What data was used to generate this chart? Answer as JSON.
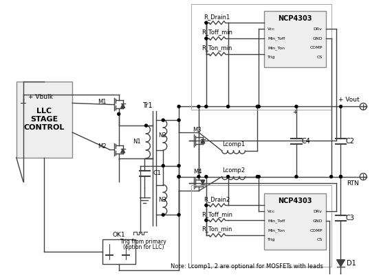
{
  "title": "",
  "bg_color": "#ffffff",
  "line_color": "#404040",
  "box_color": "#a0a0a0",
  "text_color": "#000000",
  "note": "Note: Lcomp1, 2 are optional for MOSFETs with leads",
  "labels": {
    "vbulk": "+ Vbulk",
    "vout": "+ Vout",
    "rtn": "RTN",
    "tr1": "Tr1",
    "n1": "N1",
    "n2": "N2",
    "n3": "N3",
    "m1": "M1",
    "m2": "M2",
    "m3": "M3",
    "m4": "M4",
    "c1": "C1",
    "c2": "C2",
    "c3": "C3",
    "c4": "C4",
    "d1": "D1",
    "ok1": "OK1",
    "lcomp1": "Lcomp1",
    "lcomp2": "Lcomp2",
    "ncp4303_1": "NCP4303",
    "ncp4303_2": "NCP4303",
    "rdrain1": "R_Drain1",
    "rtoffmin1": "R_Toff_min",
    "rtonmin1": "R_Ton_min",
    "rdrain2": "R_Drain2",
    "rtoffmin2": "R_Toff_min",
    "rtonmin2": "R_Ton_min",
    "trig_text": "Trig from primary\n(option for LLC)",
    "llc_line1": "LLC",
    "llc_line2": "STAGE",
    "llc_line3": "CONTROL",
    "pin_labels_left": [
      "Vcc",
      "Min_Toff",
      "Min_Ton",
      "Trig"
    ],
    "pin_labels_right": [
      "DRv",
      "GND",
      "COMP",
      "CS"
    ]
  }
}
